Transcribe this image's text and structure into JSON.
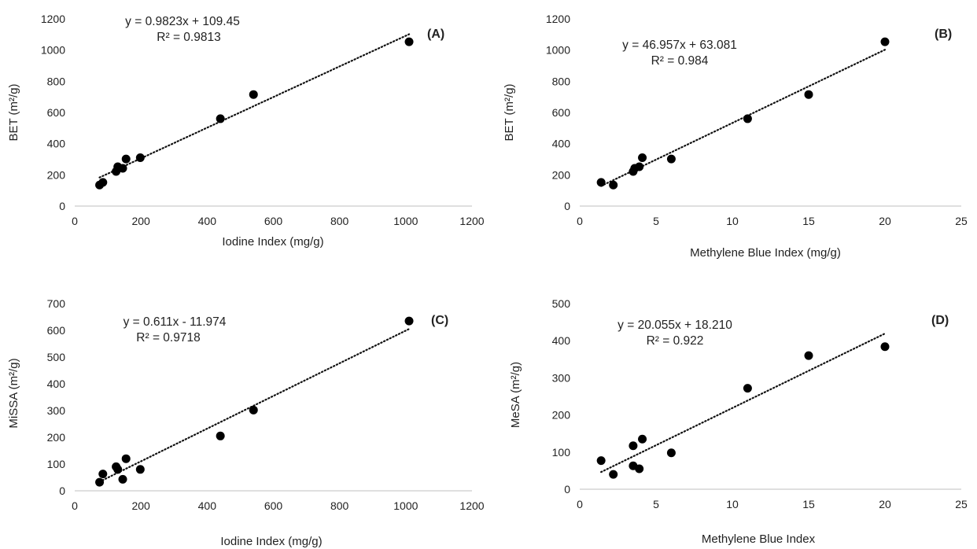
{
  "chart_data": [
    {
      "type": "scatter",
      "panel": "(A)",
      "xlabel": "Iodine Index (mg/g)",
      "ylabel": "BET (m²/g)",
      "xlim": [
        0,
        1200
      ],
      "ylim": [
        0,
        1200
      ],
      "xticks": [
        0,
        200,
        400,
        600,
        800,
        1000,
        1200
      ],
      "yticks": [
        0,
        200,
        400,
        600,
        800,
        1000,
        1200
      ],
      "equation": "y = 0.9823x + 109.45",
      "r2": "R² = 0.9813",
      "trend": {
        "slope": 0.9823,
        "intercept": 109.45,
        "x_range": [
          75,
          1010
        ]
      },
      "x": [
        75,
        85,
        125,
        130,
        145,
        155,
        198,
        440,
        540,
        1010
      ],
      "y": [
        135,
        152,
        222,
        252,
        242,
        302,
        310,
        560,
        715,
        1053
      ]
    },
    {
      "type": "scatter",
      "panel": "(B)",
      "xlabel": "Methylene Blue Index (mg/g)",
      "ylabel": "BET (m²/g)",
      "xlim": [
        0,
        25
      ],
      "ylim": [
        0,
        1200
      ],
      "xticks": [
        0,
        5,
        10,
        15,
        20,
        25
      ],
      "yticks": [
        0,
        200,
        400,
        600,
        800,
        1000,
        1200
      ],
      "equation": "y = 46.957x + 63.081",
      "r2": "R² = 0.984",
      "trend": {
        "slope": 46.957,
        "intercept": 63.081,
        "x_range": [
          1.4,
          20
        ]
      },
      "x": [
        1.4,
        2.2,
        3.5,
        3.6,
        3.9,
        4.1,
        6.0,
        11.0,
        15.0,
        20.0
      ],
      "y": [
        152,
        135,
        222,
        242,
        252,
        310,
        302,
        560,
        715,
        1053
      ]
    },
    {
      "type": "scatter",
      "panel": "(C)",
      "xlabel": "Iodine Index (mg/g)",
      "ylabel": "MiSSA (m²/g)",
      "xlim": [
        0,
        1200
      ],
      "ylim": [
        0,
        700
      ],
      "xticks": [
        0,
        200,
        400,
        600,
        800,
        1000,
        1200
      ],
      "yticks": [
        0,
        100,
        200,
        300,
        400,
        500,
        600,
        700
      ],
      "equation": "y = 0.611x - 11.974",
      "r2": "R² = 0.9718",
      "trend": {
        "slope": 0.611,
        "intercept": -11.974,
        "x_range": [
          75,
          1010
        ]
      },
      "x": [
        75,
        85,
        125,
        130,
        145,
        155,
        198,
        440,
        540,
        1010
      ],
      "y": [
        32,
        63,
        90,
        80,
        43,
        120,
        80,
        205,
        302,
        635
      ]
    },
    {
      "type": "scatter",
      "panel": "(D)",
      "xlabel": "Methylene Blue Index",
      "ylabel": "MeSA (m²/g)",
      "xlim": [
        0,
        25
      ],
      "ylim": [
        0,
        500
      ],
      "xticks": [
        0,
        5,
        10,
        15,
        20,
        25
      ],
      "yticks": [
        0,
        100,
        200,
        300,
        400,
        500
      ],
      "equation": "y = 20.055x + 18.210",
      "r2": "R² = 0.922",
      "trend": {
        "slope": 20.055,
        "intercept": 18.21,
        "x_range": [
          1.4,
          20
        ]
      },
      "x": [
        1.4,
        2.2,
        3.5,
        3.5,
        3.9,
        4.1,
        6.0,
        11.0,
        15.0,
        20.0
      ],
      "y": [
        77,
        40,
        63,
        117,
        55,
        135,
        98,
        272,
        360,
        384
      ]
    }
  ]
}
